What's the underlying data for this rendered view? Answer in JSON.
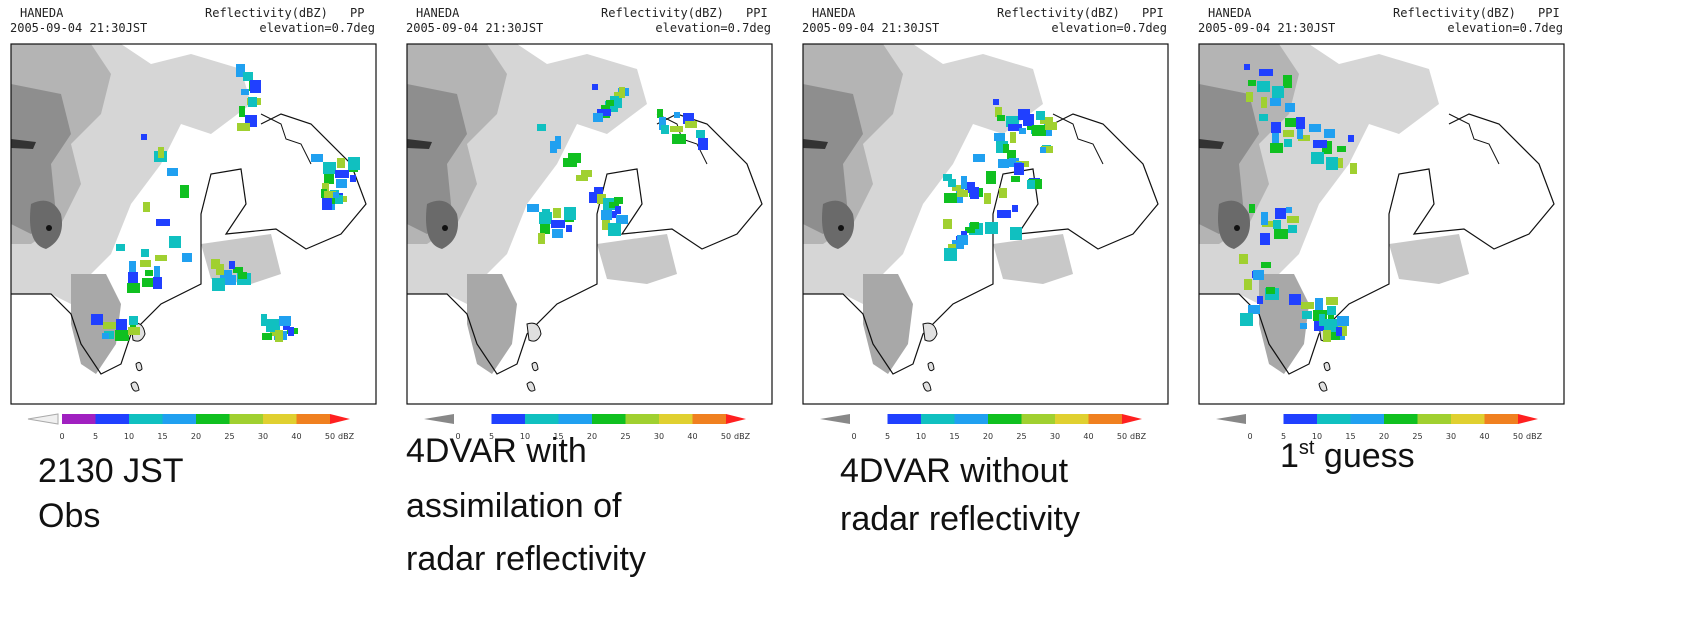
{
  "panels": [
    {
      "station": "HANEDA",
      "datetime": "2005-09-04 21:30JST",
      "product": "Reflectivity(dBZ)",
      "scan": "PP",
      "elevation": "elevation=0.7deg",
      "colorbar": {
        "ticks": [
          0,
          5,
          10,
          15,
          20,
          25,
          30,
          40,
          50
        ],
        "unit": "dBZ"
      },
      "caption": [
        "2130 JST",
        "Obs"
      ]
    },
    {
      "station": "HANEDA",
      "datetime": "2005-09-04 21:30JST",
      "product": "Reflectivity(dBZ)",
      "scan": "PPI",
      "elevation": "elevation=0.7deg",
      "colorbar": {
        "ticks": [
          0,
          5,
          10,
          15,
          20,
          25,
          30,
          40,
          50
        ],
        "unit": "dBZ"
      },
      "caption": [
        "4DVAR with",
        "assimilation of",
        "radar reflectivity"
      ]
    },
    {
      "station": "HANEDA",
      "datetime": "2005-09-04 21:30JST",
      "product": "Reflectivity(dBZ)",
      "scan": "PPI",
      "elevation": "elevation=0.7deg",
      "colorbar": {
        "ticks": [
          0,
          5,
          10,
          15,
          20,
          25,
          30,
          40,
          50
        ],
        "unit": "dBZ"
      },
      "caption": [
        "4DVAR without",
        "radar reflectivity"
      ]
    },
    {
      "station": "HANEDA",
      "datetime": "2005-09-04 21:30JST",
      "product": "Reflectivity(dBZ)",
      "scan": "PPI",
      "elevation": "elevation=0.7deg",
      "colorbar": {
        "ticks": [
          0,
          5,
          10,
          15,
          20,
          25,
          30,
          40,
          50
        ],
        "unit": "dBZ"
      },
      "caption_first_guess": {
        "number": "1",
        "suffix": "st",
        "text": " guess"
      }
    }
  ]
}
